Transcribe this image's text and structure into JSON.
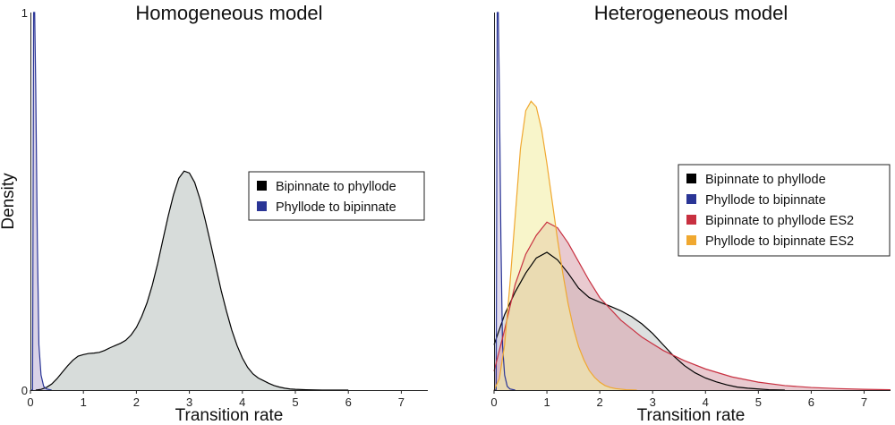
{
  "chart_data": [
    {
      "type": "area",
      "title": "Homogeneous model",
      "xlabel": "Transition rate",
      "ylabel": "Density",
      "xlim": [
        0,
        7.5
      ],
      "ylim": [
        0,
        1
      ],
      "xticks": [
        "0",
        "1",
        "2",
        "3",
        "4",
        "5",
        "6",
        "7"
      ],
      "yticks": [
        "0",
        "1"
      ],
      "legend_position": "right",
      "series": [
        {
          "name": "Bipinnate to phyllode",
          "color": "#000000",
          "fill": "#d3d8d6",
          "x": [
            0.1,
            0.2,
            0.3,
            0.4,
            0.5,
            0.6,
            0.7,
            0.8,
            0.9,
            1.0,
            1.1,
            1.2,
            1.3,
            1.4,
            1.5,
            1.6,
            1.7,
            1.8,
            1.9,
            2.0,
            2.1,
            2.2,
            2.3,
            2.4,
            2.5,
            2.6,
            2.7,
            2.8,
            2.9,
            3.0,
            3.1,
            3.2,
            3.3,
            3.4,
            3.5,
            3.6,
            3.7,
            3.8,
            3.9,
            4.0,
            4.1,
            4.2,
            4.3,
            4.4,
            4.5,
            4.6,
            4.7,
            4.8,
            4.9,
            5.0,
            5.2,
            5.5,
            6.0
          ],
          "y": [
            0.0,
            0.002,
            0.007,
            0.016,
            0.03,
            0.047,
            0.064,
            0.079,
            0.09,
            0.094,
            0.097,
            0.098,
            0.1,
            0.105,
            0.112,
            0.118,
            0.124,
            0.132,
            0.146,
            0.166,
            0.195,
            0.231,
            0.278,
            0.334,
            0.398,
            0.461,
            0.517,
            0.561,
            0.58,
            0.575,
            0.55,
            0.506,
            0.45,
            0.389,
            0.326,
            0.264,
            0.209,
            0.159,
            0.118,
            0.085,
            0.06,
            0.043,
            0.032,
            0.025,
            0.018,
            0.012,
            0.008,
            0.005,
            0.003,
            0.002,
            0.001,
            0.0,
            0.0
          ]
        },
        {
          "name": "Phyllode to bipinnate",
          "color": "#2a3596",
          "fill": "#d5cde4",
          "x": [
            0.0,
            0.04,
            0.06,
            0.08,
            0.1,
            0.13,
            0.16,
            0.2,
            0.25,
            0.3,
            0.4
          ],
          "y": [
            0.0,
            0.0,
            1.0,
            1.0,
            0.8,
            0.4,
            0.12,
            0.04,
            0.01,
            0.003,
            0.0
          ]
        }
      ]
    },
    {
      "type": "area",
      "title": "Heterogeneous model",
      "xlabel": "Transition rate",
      "ylabel": "",
      "xlim": [
        0,
        7.5
      ],
      "ylim": [
        0,
        1
      ],
      "xticks": [
        "0",
        "1",
        "2",
        "3",
        "4",
        "5",
        "6",
        "7"
      ],
      "yticks": [],
      "legend_position": "right",
      "series": [
        {
          "name": "Bipinnate to phyllode",
          "color": "#000000",
          "fill": "#c7ccca",
          "x": [
            0.0,
            0.2,
            0.4,
            0.6,
            0.8,
            1.0,
            1.2,
            1.4,
            1.6,
            1.8,
            2.0,
            2.2,
            2.4,
            2.6,
            2.8,
            3.0,
            3.2,
            3.4,
            3.6,
            3.8,
            4.0,
            4.2,
            4.4,
            4.6,
            4.8,
            5.0,
            5.2,
            5.5
          ],
          "y": [
            0.12,
            0.2,
            0.26,
            0.31,
            0.35,
            0.365,
            0.345,
            0.31,
            0.27,
            0.245,
            0.233,
            0.222,
            0.21,
            0.195,
            0.175,
            0.15,
            0.12,
            0.09,
            0.065,
            0.046,
            0.032,
            0.022,
            0.014,
            0.008,
            0.005,
            0.003,
            0.001,
            0.0
          ]
        },
        {
          "name": "Phyllode to bipinnate",
          "color": "#2a3596",
          "fill": "#cfc6e2",
          "x": [
            0.0,
            0.04,
            0.06,
            0.08,
            0.1,
            0.13,
            0.16,
            0.2,
            0.25,
            0.3,
            0.4
          ],
          "y": [
            0.0,
            0.0,
            1.0,
            1.0,
            0.8,
            0.4,
            0.12,
            0.04,
            0.01,
            0.003,
            0.0
          ]
        },
        {
          "name": "Bipinnate to phyllode ES2",
          "color": "#c83040",
          "fill": "#dba6b0",
          "x": [
            0.0,
            0.2,
            0.4,
            0.6,
            0.8,
            1.0,
            1.2,
            1.4,
            1.6,
            1.8,
            2.0,
            2.4,
            2.8,
            3.2,
            3.6,
            4.0,
            4.5,
            5.0,
            5.5,
            6.0,
            6.5,
            7.0,
            7.5
          ],
          "y": [
            0.05,
            0.16,
            0.28,
            0.36,
            0.41,
            0.445,
            0.43,
            0.39,
            0.34,
            0.29,
            0.245,
            0.185,
            0.14,
            0.105,
            0.078,
            0.056,
            0.035,
            0.021,
            0.012,
            0.007,
            0.004,
            0.002,
            0.001
          ]
        },
        {
          "name": "Phyllode to bipinnate ES2",
          "color": "#f0a830",
          "fill": "#f3eea6",
          "x": [
            0.0,
            0.1,
            0.2,
            0.3,
            0.4,
            0.5,
            0.6,
            0.7,
            0.8,
            0.9,
            1.0,
            1.1,
            1.2,
            1.3,
            1.4,
            1.5,
            1.6,
            1.7,
            1.8,
            1.9,
            2.0,
            2.1,
            2.2,
            2.3,
            2.5,
            2.7
          ],
          "y": [
            0.0,
            0.03,
            0.12,
            0.28,
            0.46,
            0.64,
            0.74,
            0.765,
            0.75,
            0.69,
            0.6,
            0.5,
            0.4,
            0.31,
            0.23,
            0.165,
            0.115,
            0.08,
            0.052,
            0.034,
            0.021,
            0.012,
            0.007,
            0.004,
            0.001,
            0.0
          ]
        }
      ]
    }
  ]
}
